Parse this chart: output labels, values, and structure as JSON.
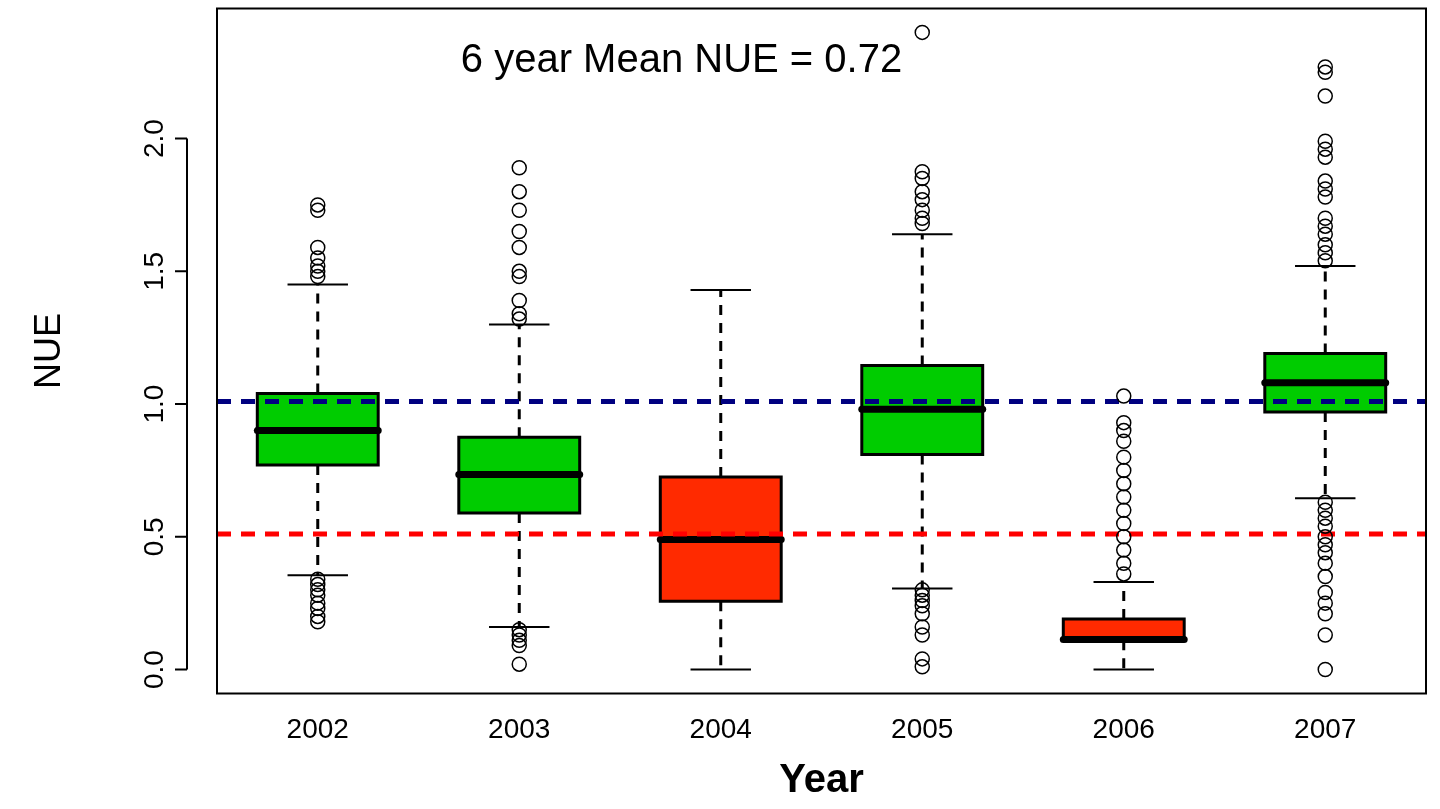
{
  "chart_data": {
    "type": "box",
    "title": "6 year Mean NUE = 0.72",
    "xlabel": "Year",
    "ylabel": "NUE",
    "categories": [
      "2002",
      "2003",
      "2004",
      "2005",
      "2006",
      "2007"
    ],
    "colors": [
      "#00cc00",
      "#00cc00",
      "#ff2a00",
      "#00cc00",
      "#ff2a00",
      "#00cc00"
    ],
    "boxes": [
      {
        "low": 0.355,
        "q1": 0.77,
        "median": 0.9,
        "q3": 1.04,
        "high": 1.45,
        "outliers": [
          1.75,
          1.73,
          1.59,
          1.55,
          1.52,
          1.5,
          1.48,
          0.34,
          0.32,
          0.3,
          0.28,
          0.25,
          0.23,
          0.2,
          0.18
        ]
      },
      {
        "low": 0.16,
        "q1": 0.59,
        "median": 0.735,
        "q3": 0.875,
        "high": 1.3,
        "outliers": [
          1.89,
          1.8,
          1.73,
          1.65,
          1.59,
          1.5,
          1.48,
          1.39,
          1.34,
          1.32,
          0.15,
          0.13,
          0.11,
          0.09,
          0.02
        ]
      },
      {
        "low": 0,
        "q1": 0.257,
        "median": 0.49,
        "q3": 0.725,
        "high": 1.43
      },
      {
        "low": 0.305,
        "q1": 0.81,
        "median": 0.98,
        "q3": 1.145,
        "high": 1.64,
        "outliers": [
          2.4,
          1.875,
          1.85,
          1.8,
          1.77,
          1.73,
          1.7,
          1.68,
          0.3,
          0.28,
          0.26,
          0.24,
          0.21,
          0.16,
          0.13,
          0.04,
          0.01
        ]
      },
      {
        "low": 0,
        "q1": 0.11,
        "median": 0.113,
        "q3": 0.19,
        "high": 0.33,
        "outliers": [
          1.03,
          0.93,
          0.9,
          0.86,
          0.8,
          0.75,
          0.7,
          0.65,
          0.6,
          0.55,
          0.5,
          0.45,
          0.4,
          0.36
        ]
      },
      {
        "low": 0.645,
        "q1": 0.97,
        "median": 1.08,
        "q3": 1.19,
        "high": 1.52,
        "outliers": [
          2.27,
          2.25,
          2.16,
          1.99,
          1.96,
          1.93,
          1.84,
          1.81,
          1.78,
          1.7,
          1.67,
          1.64,
          1.6,
          1.57,
          1.54,
          0.63,
          0.6,
          0.57,
          0.54,
          0.5,
          0.47,
          0.44,
          0.4,
          0.35,
          0.29,
          0.25,
          0.21,
          0.13,
          0.0
        ]
      }
    ],
    "ylim": [
      -0.09,
      2.49
    ],
    "yticks": [
      {
        "value": 0,
        "label": "0.0"
      },
      {
        "value": 0.5,
        "label": "0.5"
      },
      {
        "value": 1,
        "label": "1.0"
      },
      {
        "value": 1.5,
        "label": "1.5"
      },
      {
        "value": 2,
        "label": "2.0"
      }
    ],
    "ref_lines": [
      {
        "axis": "y",
        "value": 1.01,
        "color": "#000080",
        "line_style": "dashed"
      },
      {
        "axis": "y",
        "value": 0.51,
        "color": "#ff0000",
        "line_style": "dashed"
      }
    ],
    "marker": "circle",
    "grid": false,
    "legend": false
  }
}
